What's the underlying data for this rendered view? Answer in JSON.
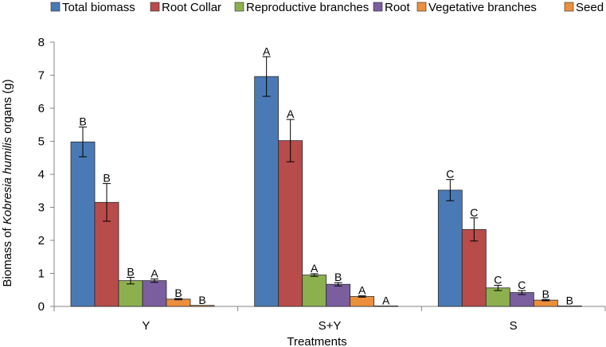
{
  "chart_data": {
    "type": "bar",
    "title": "",
    "xlabel": "Treatments",
    "ylabel_prefix": "Biomass of ",
    "ylabel_italic": "Kobresia humilis",
    "ylabel_suffix": " organs (g)",
    "ylim": [
      0,
      8
    ],
    "yticks": [
      0,
      1,
      2,
      3,
      4,
      5,
      6,
      7,
      8
    ],
    "grid": false,
    "legend_position": "top",
    "categories": [
      "Y",
      "S+Y",
      "S"
    ],
    "series": [
      {
        "name": "Total biomass",
        "color": "#4a7ab5",
        "values": [
          4.98,
          6.96,
          3.52
        ],
        "errors": [
          0.45,
          0.6,
          0.32
        ],
        "labels": [
          "B",
          "A",
          "C"
        ]
      },
      {
        "name": "Root Collar",
        "color": "#b84c4a",
        "values": [
          3.15,
          5.02,
          2.33
        ],
        "errors": [
          0.57,
          0.64,
          0.35
        ],
        "labels": [
          "B",
          "A",
          "C"
        ]
      },
      {
        "name": "Reproductive branches",
        "color": "#8db04f",
        "values": [
          0.78,
          0.95,
          0.56
        ],
        "errors": [
          0.1,
          0.04,
          0.08
        ],
        "labels": [
          "B",
          "A",
          "C"
        ]
      },
      {
        "name": "Root",
        "color": "#7a5e9e",
        "values": [
          0.78,
          0.67,
          0.42
        ],
        "errors": [
          0.05,
          0.05,
          0.06
        ],
        "labels": [
          "A",
          "B",
          "C"
        ]
      },
      {
        "name": "Vegetative branches",
        "color": "#ec8f3d",
        "values": [
          0.22,
          0.3,
          0.19
        ],
        "errors": [
          0.02,
          0.02,
          0.02
        ],
        "labels": [
          "B",
          "A",
          "B"
        ]
      },
      {
        "name": "Seed",
        "color": "#ec8f3d",
        "values": [
          0.03,
          0.01,
          0.01
        ],
        "errors": [
          0.0,
          0.0,
          0.0
        ],
        "labels": [
          "B",
          "A",
          "B"
        ]
      }
    ]
  }
}
